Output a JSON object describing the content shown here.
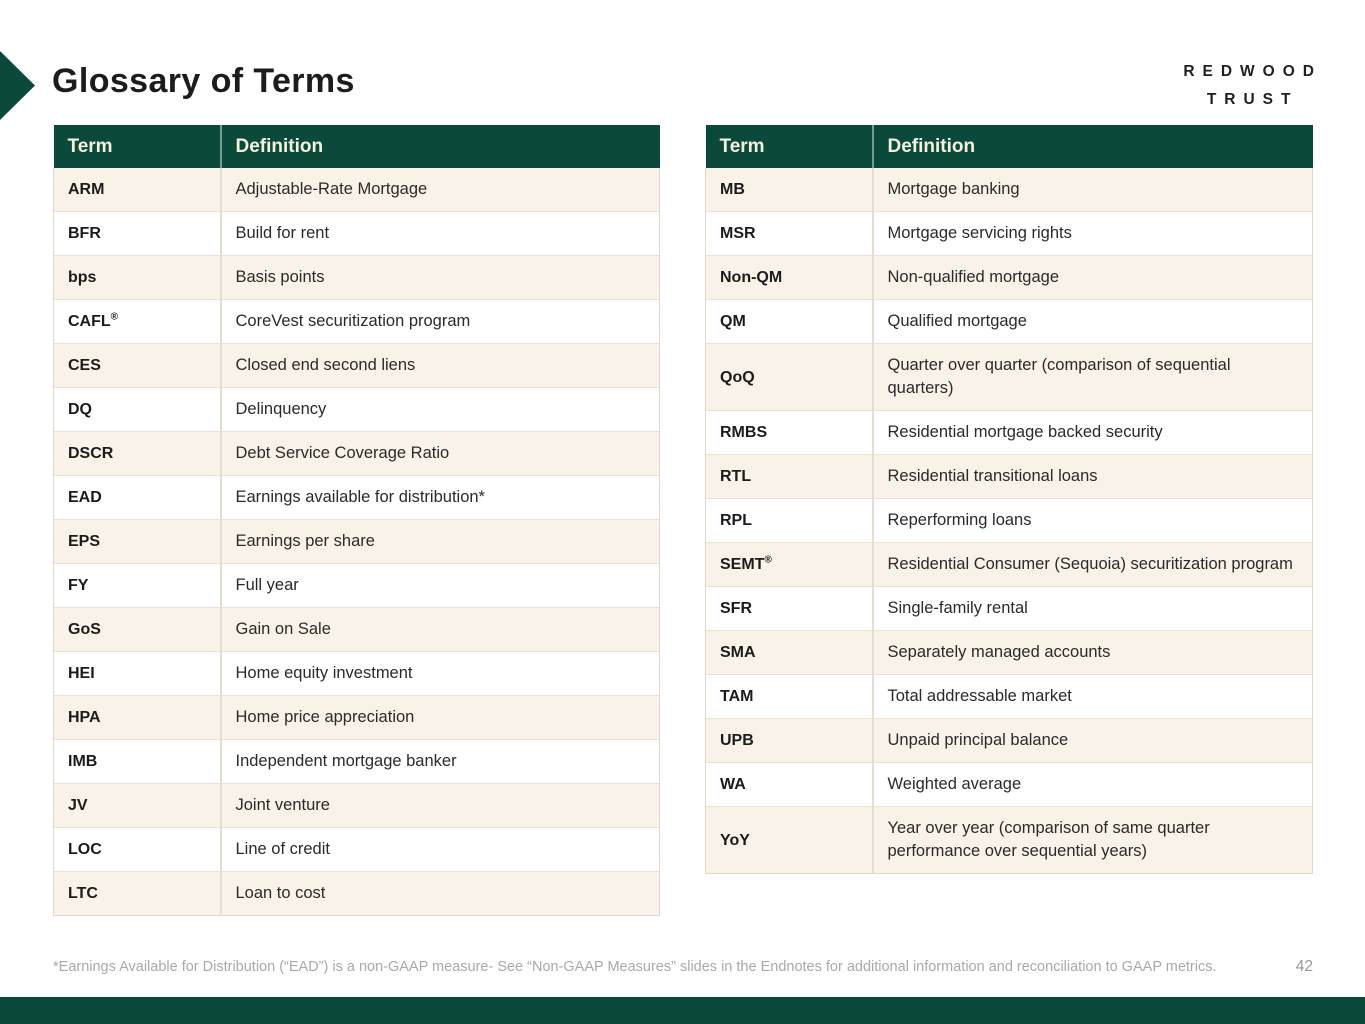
{
  "page": {
    "title": "Glossary of Terms",
    "page_number": "42",
    "footnote": "*Earnings Available for Distribution (“EAD”) is a non-GAAP measure- See “Non-GAAP Measures” slides in the Endnotes for additional information and reconciliation to GAAP metrics."
  },
  "logo": {
    "line1": "REDWOOD",
    "line2": "TRUST"
  },
  "colors": {
    "brand_green": "#0B4A3B",
    "cream_row": "#F9F2E8",
    "header_text": "#F5F0E2"
  },
  "tables": [
    {
      "name": "glossary-table-left",
      "headers": [
        "Term",
        "Definition"
      ],
      "rows": [
        {
          "term": "ARM",
          "def": "Adjustable-Rate Mortgage"
        },
        {
          "term": "BFR",
          "def": "Build for rent"
        },
        {
          "term": "bps",
          "def": "Basis points"
        },
        {
          "term": "CAFL",
          "sup": "®",
          "def": "CoreVest securitization program"
        },
        {
          "term": "CES",
          "def": "Closed end second liens"
        },
        {
          "term": "DQ",
          "def": "Delinquency"
        },
        {
          "term": "DSCR",
          "def": "Debt Service Coverage Ratio"
        },
        {
          "term": "EAD",
          "def": "Earnings available for distribution*"
        },
        {
          "term": "EPS",
          "def": "Earnings per share"
        },
        {
          "term": "FY",
          "def": "Full year"
        },
        {
          "term": "GoS",
          "def": "Gain on Sale"
        },
        {
          "term": "HEI",
          "def": "Home equity investment"
        },
        {
          "term": "HPA",
          "def": "Home price appreciation"
        },
        {
          "term": "IMB",
          "def": "Independent mortgage banker"
        },
        {
          "term": "JV",
          "def": "Joint venture"
        },
        {
          "term": "LOC",
          "def": "Line of credit"
        },
        {
          "term": "LTC",
          "def": "Loan to cost"
        }
      ]
    },
    {
      "name": "glossary-table-right",
      "headers": [
        "Term",
        "Definition"
      ],
      "rows": [
        {
          "term": "MB",
          "def": "Mortgage banking"
        },
        {
          "term": "MSR",
          "def": "Mortgage servicing rights"
        },
        {
          "term": "Non-QM",
          "def": "Non-qualified mortgage"
        },
        {
          "term": "QM",
          "def": "Qualified mortgage"
        },
        {
          "term": "QoQ",
          "def": "Quarter over quarter (comparison of sequential quarters)"
        },
        {
          "term": "RMBS",
          "def": "Residential mortgage backed security"
        },
        {
          "term": "RTL",
          "def": "Residential transitional loans"
        },
        {
          "term": "RPL",
          "def": "Reperforming loans"
        },
        {
          "term": "SEMT",
          "sup": "®",
          "def": "Residential Consumer (Sequoia) securitization program"
        },
        {
          "term": "SFR",
          "def": "Single-family rental"
        },
        {
          "term": "SMA",
          "def": "Separately managed accounts"
        },
        {
          "term": "TAM",
          "def": "Total addressable market"
        },
        {
          "term": "UPB",
          "def": "Unpaid principal balance"
        },
        {
          "term": "WA",
          "def": "Weighted average"
        },
        {
          "term": "YoY",
          "def": "Year over year (comparison of same quarter performance over sequential years)"
        }
      ]
    }
  ]
}
